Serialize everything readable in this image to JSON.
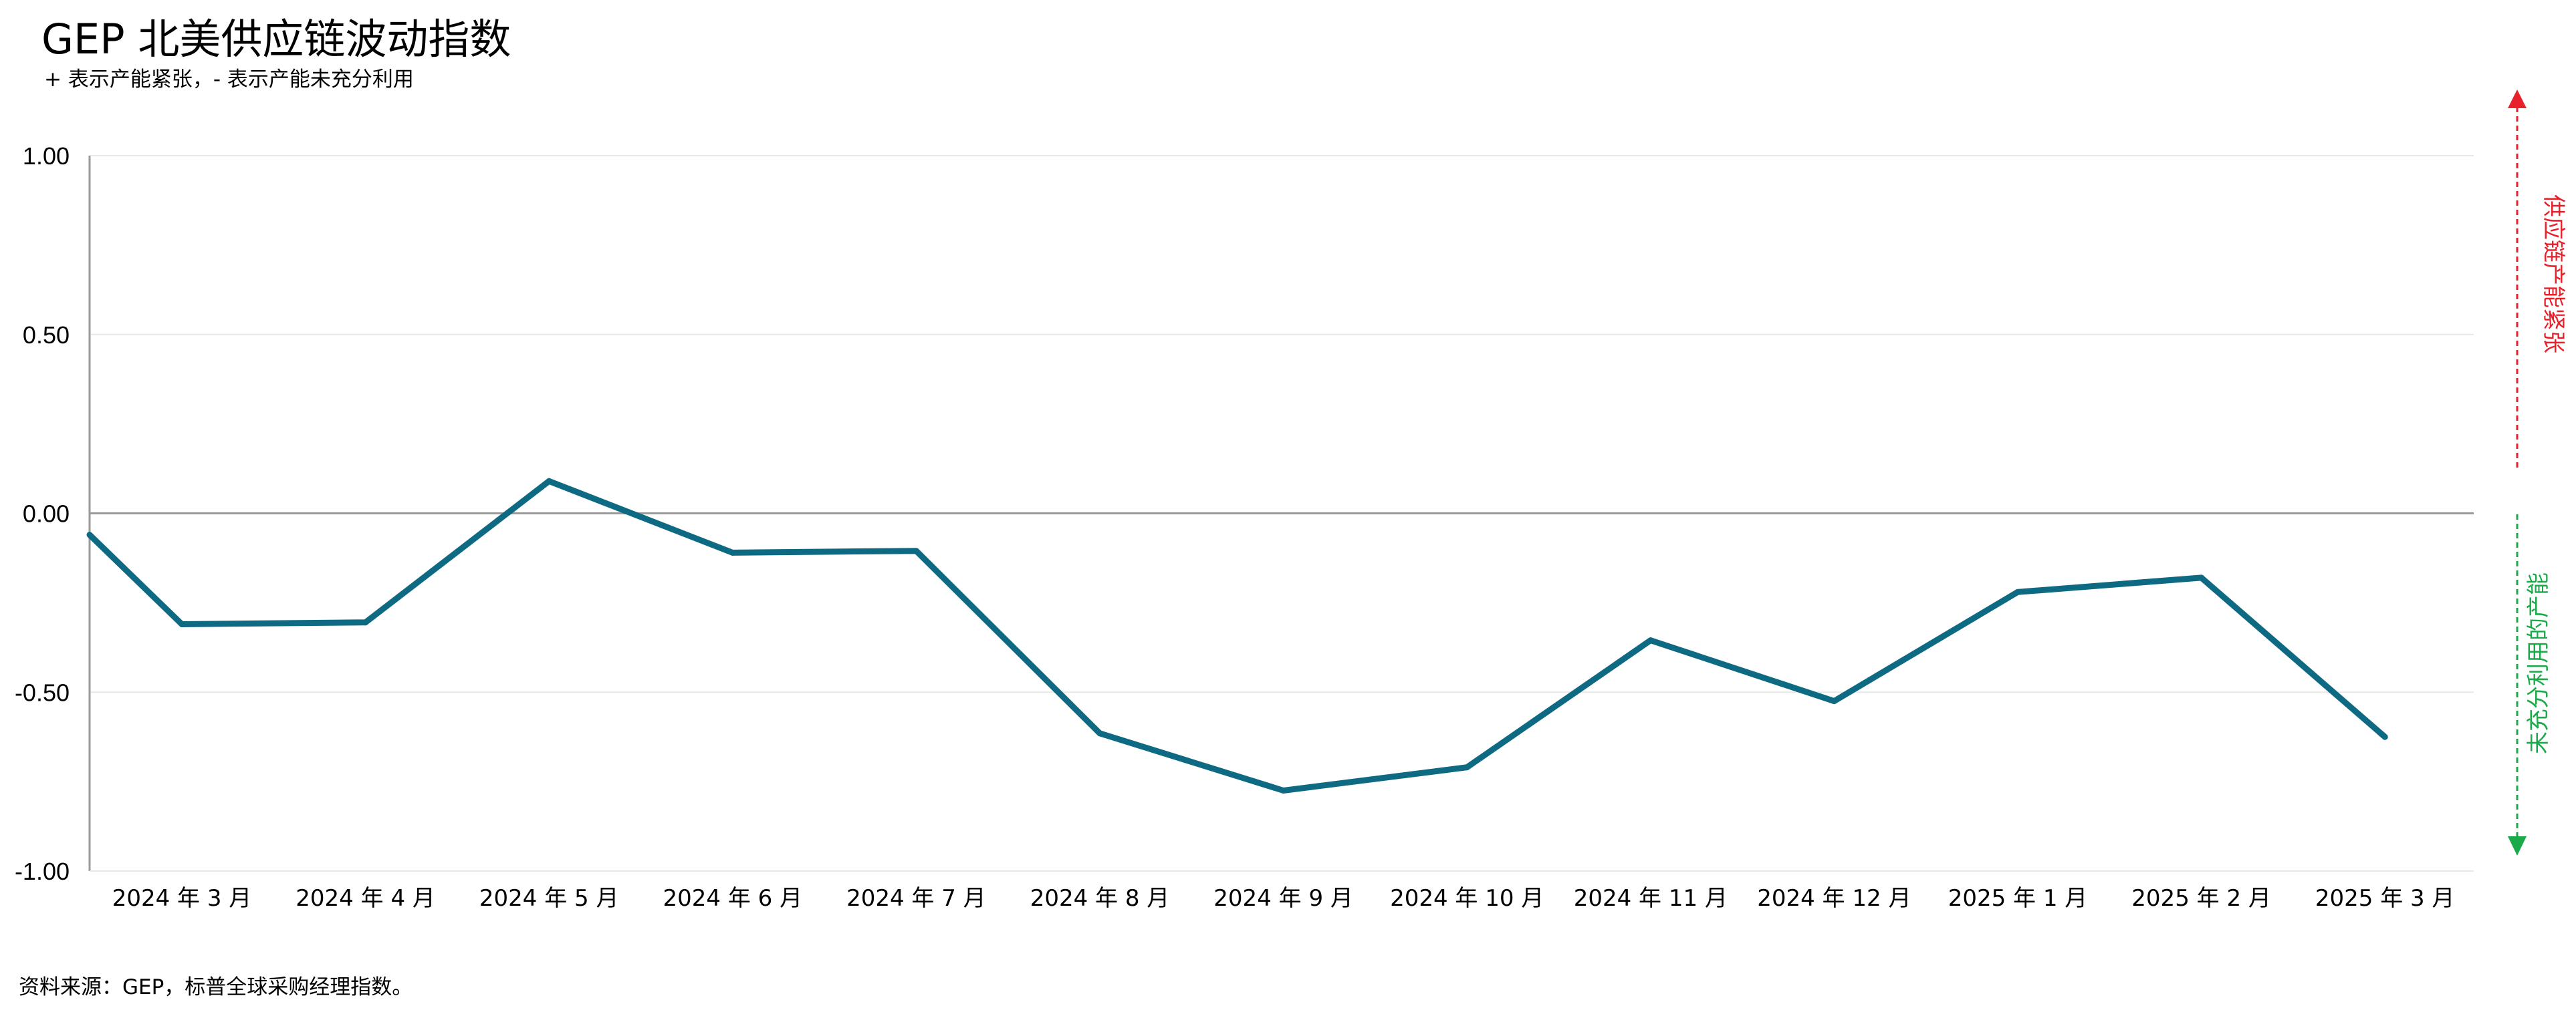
{
  "title": "GEP 北美供应链波动指数",
  "subtitle": "+ 表示产能紧张，- 表示产能未充分利用",
  "source": "资料来源：GEP，标普全球采购经理指数。",
  "chart_data": {
    "type": "line",
    "title": "GEP 北美供应链波动指数",
    "subtitle": "+ 表示产能紧张，- 表示产能未充分利用",
    "xlabel": "",
    "ylabel": "",
    "categories": [
      "2024 年 3 月",
      "2024 年 4 月",
      "2024 年 5 月",
      "2024 年 6 月",
      "2024 年 7 月",
      "2024 年 8 月",
      "2024 年 9 月",
      "2024 年 10 月",
      "2024 年 11 月",
      "2024 年 12 月",
      "2025 年 1 月",
      "2025 年 2 月",
      "2025 年 3 月"
    ],
    "series": [
      {
        "values": [
          -0.31,
          -0.305,
          0.09,
          -0.11,
          -0.105,
          -0.615,
          -0.775,
          -0.71,
          -0.355,
          -0.525,
          -0.22,
          -0.18,
          -0.625
        ]
      }
    ],
    "series_start_value": -0.06,
    "ylim": [
      -1.0,
      1.0
    ],
    "yticks": [
      "1.00",
      "0.50",
      "0.00",
      "-0.50",
      "-1.00"
    ],
    "ytick_values": [
      1.0,
      0.5,
      0.0,
      -0.5,
      -1.0
    ],
    "grid": true,
    "legend": "none",
    "annotations": {
      "upper": "供应链产能紧张",
      "lower": "未充分利用的产能"
    },
    "colors": {
      "line": "#0e6a82",
      "grid": "#e8e8e8",
      "zero_line": "#9a9a9a",
      "axis": "#9a9a9a",
      "upper_annotation": "#e8202a",
      "lower_annotation": "#1aaa4a"
    }
  }
}
